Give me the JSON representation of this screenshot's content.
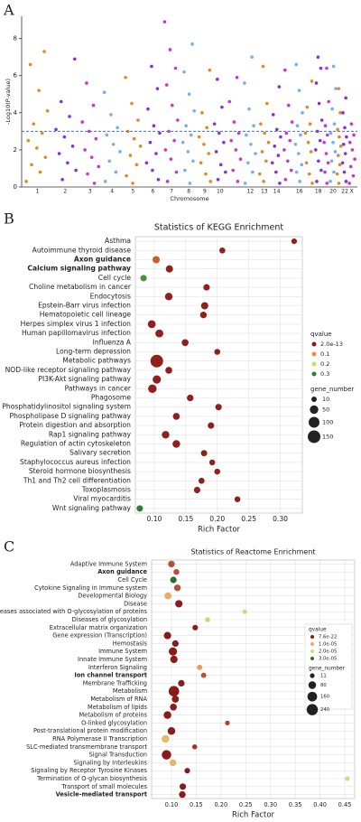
{
  "chart_data": [
    {
      "type": "manhattan",
      "panel": "A",
      "y_label": "-Log10(P-value)",
      "x_label": "Chromosome",
      "ylim": [
        0,
        9.2
      ],
      "yticks": [
        0,
        2,
        4,
        6,
        8
      ],
      "threshold": 3,
      "palette": [
        "#e08a1e",
        "#8a2be2",
        "#cc33cc",
        "#72aef0"
      ],
      "categories": [
        "1",
        "2",
        "3",
        "4",
        "5",
        "6",
        "7",
        "8",
        "9",
        "10",
        null,
        "12",
        "13",
        "14",
        null,
        "16",
        null,
        "18",
        null,
        "20",
        null,
        "22",
        "X"
      ],
      "values": [
        [
          0.3,
          0.8,
          1.2,
          1.6,
          2.1,
          2.5,
          2.9,
          3.4,
          4.1,
          5.2,
          6.6,
          7.3
        ],
        [
          0.4,
          0.9,
          1.3,
          1.8,
          2.2,
          2.7,
          3.1,
          3.8,
          4.6,
          6.9
        ],
        [
          0.2,
          0.7,
          1.1,
          1.6,
          2.0,
          2.6,
          3.0,
          3.5,
          4.4,
          5.6
        ],
        [
          0.3,
          0.8,
          1.4,
          1.9,
          2.3,
          2.8,
          3.2,
          3.9,
          5.1
        ],
        [
          0.2,
          0.6,
          1.2,
          1.7,
          2.2,
          2.6,
          3.0,
          3.6,
          4.5,
          5.9
        ],
        [
          0.4,
          0.9,
          1.3,
          1.8,
          2.4,
          2.9,
          3.3,
          4.2,
          5.3,
          6.5
        ],
        [
          0.3,
          0.8,
          1.5,
          2.0,
          2.5,
          3.0,
          3.6,
          4.4,
          5.5,
          6.4,
          7.4,
          8.9
        ],
        [
          0.2,
          0.9,
          1.4,
          1.9,
          2.4,
          2.8,
          3.3,
          4.1,
          5.0,
          6.2,
          7.7
        ],
        [
          0.3,
          0.7,
          1.3,
          1.8,
          2.3,
          2.7,
          3.2,
          4.0,
          6.3
        ],
        [
          0.4,
          0.8,
          1.2,
          1.9,
          2.4,
          2.9,
          3.4,
          4.3,
          5.8
        ],
        [
          0.3,
          0.9,
          1.5,
          2.0,
          2.5,
          2.9,
          3.5,
          4.6,
          5.9
        ],
        [
          0.2,
          0.8,
          1.3,
          1.8,
          2.3,
          2.8,
          3.3,
          4.2,
          5.6,
          7.0
        ],
        [
          0.3,
          0.7,
          1.4,
          1.9,
          2.4,
          2.9,
          3.4,
          4.5,
          6.5
        ],
        [
          0.2,
          0.8,
          1.3,
          1.7,
          2.2,
          2.7,
          3.1,
          3.9,
          5.4
        ],
        [
          0.4,
          0.9,
          1.4,
          2.0,
          2.5,
          2.9,
          3.5,
          4.4,
          6.3
        ],
        [
          0.3,
          0.8,
          1.2,
          1.8,
          2.3,
          2.8,
          3.3,
          4.0,
          5.2,
          6.6
        ],
        [
          0.2,
          0.7,
          1.3,
          1.9,
          2.4,
          2.9,
          3.4,
          4.3,
          5.7
        ],
        [
          0.3,
          0.9,
          1.4,
          2.0,
          2.5,
          3.0,
          3.6,
          4.5,
          5.6,
          6.4,
          7.0
        ],
        [
          0.2,
          0.8,
          1.3,
          1.8,
          2.4,
          2.8,
          3.3,
          4.6,
          6.4
        ],
        [
          0.3,
          0.8,
          1.4,
          1.9,
          2.4,
          2.9,
          3.4,
          4.2,
          5.3,
          6.5
        ],
        [
          0.2,
          0.7,
          1.2,
          1.7,
          2.2,
          2.7,
          3.1,
          4.0,
          5.3
        ],
        [
          0.3,
          0.8,
          1.3,
          1.8,
          2.3,
          2.7,
          3.2,
          4.0,
          4.8
        ],
        [
          0.2,
          0.6,
          1.1,
          1.5,
          2.0,
          2.4,
          2.8,
          3.4
        ]
      ]
    },
    {
      "type": "bubble",
      "panel": "B",
      "title": "Statistics of KEGG Enrichment",
      "x_label": "Rich Factor",
      "xlim": [
        0.07,
        0.335
      ],
      "xticks": [
        {
          "value": 0.1,
          "label": "0.10"
        },
        0.15,
        {
          "value": 0.2,
          "label": "0.20"
        },
        0.25,
        {
          "value": 0.3,
          "label": "0.30"
        }
      ],
      "grid": true,
      "bold": [
        2,
        3
      ],
      "categories": [
        "Asthma",
        "Autoimmune thyroid disease",
        "Axon guidance",
        "Calcium signaling pathway",
        "Cell cycle",
        "Choline metabolism in cancer",
        "Endocytosis",
        "Epstein-Barr virus infection",
        "Hematopoietic cell lineage",
        "Herpes simplex virus 1 infection",
        "Human papillomavirus infection",
        "Influenza A",
        "Long-term depression",
        "Metabolic pathways",
        "NOD-like receptor signaling pathway",
        "PI3K-Akt signaling pathway",
        "Pathways in cancer",
        "Phagosome",
        "Phosphatidylinositol signaling system",
        "Phospholipase D signaling pathway",
        "Protein digestion and absorption",
        "Rap1 signaling pathway",
        "Regulation of actin cytoskeleton",
        "Salivary secretion",
        "Staphylococcus aureus infection",
        "Steroid hormone biosynthesis",
        "Th1 and Th2 cell differentiation",
        "Toxoplasmosis",
        "Viral myocarditis",
        "Wnt signaling pathway"
      ],
      "values": [
        0.322,
        0.208,
        0.103,
        0.124,
        0.083,
        0.183,
        0.123,
        0.18,
        0.178,
        0.096,
        0.108,
        0.149,
        0.2,
        0.104,
        0.123,
        0.104,
        0.097,
        0.157,
        0.202,
        0.135,
        0.19,
        0.118,
        0.135,
        0.179,
        0.192,
        0.2,
        0.175,
        0.168,
        0.232,
        0.077
      ],
      "qvalue": [
        0.005,
        0.005,
        0.06,
        0.005,
        0.28,
        0.005,
        0.005,
        0.005,
        0.005,
        0.005,
        0.005,
        0.005,
        0.005,
        0.005,
        0.005,
        0.005,
        0.005,
        0.005,
        0.005,
        0.005,
        0.005,
        0.005,
        0.005,
        0.005,
        0.005,
        0.005,
        0.005,
        0.005,
        0.005,
        0.3
      ],
      "gene_number": [
        12,
        15,
        30,
        30,
        20,
        20,
        35,
        30,
        22,
        40,
        40,
        25,
        15,
        150,
        25,
        45,
        50,
        22,
        20,
        25,
        20,
        35,
        35,
        18,
        14,
        14,
        16,
        20,
        14,
        20
      ],
      "color_legend": {
        "title": "qvalue",
        "stops": [
          {
            "value": 2e-13,
            "label": "2.0e-13"
          },
          0.1,
          0.2,
          0.3
        ],
        "colors": [
          "#8b1a1a",
          "#f28c3a",
          "#c8dc5a",
          "#2e7d32"
        ]
      },
      "size_legend": {
        "title": "gene_number",
        "values": [
          10,
          50,
          100,
          150
        ]
      }
    },
    {
      "type": "bubble",
      "panel": "C",
      "title": "Statistics of Reactome Enrichment",
      "x_label": "Rich Factor",
      "xlim": [
        0.06,
        0.47
      ],
      "xticks": [
        {
          "value": 0.1,
          "label": "0.10"
        },
        0.15,
        {
          "value": 0.2,
          "label": "0.20"
        },
        0.25,
        {
          "value": 0.3,
          "label": "0.30"
        },
        0.35,
        {
          "value": 0.4,
          "label": "0.40"
        },
        0.45
      ],
      "grid": true,
      "bold": [
        1,
        14,
        29
      ],
      "categories": [
        "Adaptive Immune System",
        "Axon guidance",
        "Cell Cycle",
        "Cytokine Signaling in Immune system",
        "Developmental Biology",
        "Disease",
        "Diseases associated with O-glycosylation of proteins",
        "Diseases of glycosylation",
        "Extracellular matrix organization",
        "Gene expression (Transcription)",
        "Hemostasis",
        "Immune System",
        "Innate Immune System",
        "Interferon Signaling",
        "Ion channel transport",
        "Membrane Trafficking",
        "Metabolism",
        "Metabolism of RNA",
        "Metabolism of lipids",
        "Metabolism of proteins",
        "O-linked glycosylation",
        "Post-translational protein modification",
        "RNA Polymerase II Transcription",
        "SLC-mediated transmembrane transport",
        "Signal Transduction",
        "Signaling by Interleukins",
        "Signaling by Receptor Tyrosine Kinases",
        "Termination of O-glycan biosynthesis",
        "Transport of small molecules",
        "Vesicle-mediated transport"
      ],
      "values": [
        0.1,
        0.11,
        0.104,
        0.112,
        0.093,
        0.115,
        0.248,
        0.173,
        0.148,
        0.092,
        0.108,
        0.103,
        0.105,
        0.157,
        0.165,
        0.12,
        0.105,
        0.108,
        0.104,
        0.092,
        0.213,
        0.1,
        0.088,
        0.147,
        0.09,
        0.103,
        0.132,
        0.455,
        0.123,
        0.122
      ],
      "qvalue": [
        4e-06,
        4e-06,
        3e-05,
        4e-06,
        1.1e-05,
        1e-08,
        2e-05,
        1.8e-05,
        1e-08,
        1e-08,
        1e-08,
        1e-08,
        1e-08,
        9e-06,
        4e-06,
        1e-08,
        1e-08,
        1e-08,
        1e-08,
        1e-08,
        3e-06,
        1e-08,
        1.4e-05,
        2e-06,
        1e-08,
        1.3e-05,
        1e-08,
        2e-05,
        1e-08,
        1e-08
      ],
      "gene_number": [
        50,
        30,
        45,
        50,
        60,
        70,
        11,
        15,
        25,
        70,
        45,
        100,
        70,
        20,
        20,
        45,
        200,
        60,
        55,
        80,
        12,
        80,
        80,
        15,
        150,
        50,
        25,
        11,
        45,
        50
      ],
      "color_legend": {
        "title": "qvalue",
        "stops": [
          {
            "value": 7.6e-22,
            "label": "7.6e-22"
          },
          {
            "value": 1e-05,
            "label": "1.0e-05"
          },
          {
            "value": 2e-05,
            "label": "2.0e-05"
          },
          {
            "value": 3e-05,
            "label": "3.0e-05"
          }
        ],
        "colors": [
          "#8b1a1a",
          "#f4a460",
          "#c5e17a",
          "#2e6b2e"
        ]
      },
      "size_legend": {
        "title": "gene_number",
        "values": [
          11,
          80,
          160,
          240
        ]
      }
    }
  ]
}
